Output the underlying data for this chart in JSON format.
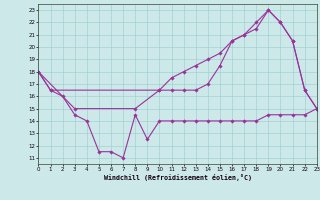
{
  "xlabel": "Windchill (Refroidissement éolien,°C)",
  "xlim": [
    0,
    23
  ],
  "ylim": [
    10.5,
    23.5
  ],
  "xticks": [
    0,
    1,
    2,
    3,
    4,
    5,
    6,
    7,
    8,
    9,
    10,
    11,
    12,
    13,
    14,
    15,
    16,
    17,
    18,
    19,
    20,
    21,
    22,
    23
  ],
  "yticks": [
    11,
    12,
    13,
    14,
    15,
    16,
    17,
    18,
    19,
    20,
    21,
    22,
    23
  ],
  "bg_color": "#cce8e8",
  "line_color": "#993399",
  "curve1_x": [
    0,
    1,
    2,
    3,
    4,
    5,
    6,
    7,
    8,
    9,
    10,
    11,
    12,
    13,
    14,
    15,
    16,
    17,
    18,
    19,
    20,
    21,
    22,
    23
  ],
  "curve1_y": [
    18,
    16.5,
    16,
    14.5,
    14,
    11.5,
    11.5,
    11,
    14.5,
    12.5,
    14,
    14,
    14,
    14,
    14,
    14,
    14,
    14,
    14,
    14.5,
    14.5,
    14.5,
    14.5,
    15
  ],
  "curve2_x": [
    0,
    1,
    10,
    11,
    12,
    13,
    14,
    15,
    16,
    17,
    18,
    19,
    20,
    21,
    22,
    23
  ],
  "curve2_y": [
    18,
    16.5,
    16.5,
    16.5,
    16.5,
    16.5,
    17,
    18.5,
    20.5,
    21,
    21.5,
    23,
    22,
    20.5,
    16.5,
    15
  ],
  "curve3_x": [
    0,
    3,
    8,
    10,
    11,
    12,
    13,
    14,
    15,
    16,
    17,
    18,
    19,
    20,
    21,
    22,
    23
  ],
  "curve3_y": [
    18,
    15,
    15,
    16.5,
    17.5,
    18,
    18.5,
    19,
    19.5,
    20.5,
    21,
    22,
    23,
    22,
    20.5,
    16.5,
    15
  ]
}
